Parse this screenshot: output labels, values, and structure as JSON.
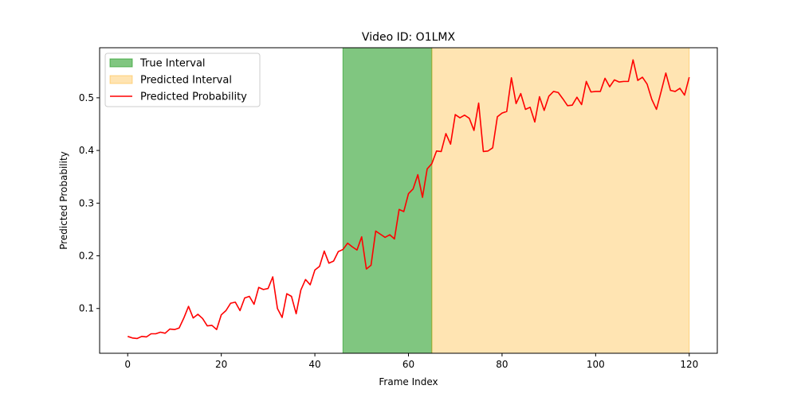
{
  "chart_data": {
    "type": "line",
    "title": "Video ID: O1LMX",
    "xlabel": "Frame Index",
    "ylabel": "Predicted Probability",
    "xlim": [
      -6,
      126
    ],
    "ylim": [
      0.015,
      0.595
    ],
    "x_ticks": [
      0,
      20,
      40,
      60,
      80,
      100,
      120
    ],
    "y_ticks": [
      0.1,
      0.2,
      0.3,
      0.4,
      0.5
    ],
    "grid": false,
    "legend_position": "top-left",
    "intervals": [
      {
        "name": "True Interval",
        "start": 46,
        "end": 65,
        "color": "#2ca02c",
        "opacity": 0.6
      },
      {
        "name": "Predicted Interval",
        "start": 65,
        "end": 120,
        "color": "#ffa500",
        "opacity": 0.3
      }
    ],
    "series": [
      {
        "name": "Predicted Probability",
        "color": "#ff0000",
        "x": [
          0,
          1,
          2,
          3,
          4,
          5,
          6,
          7,
          8,
          9,
          10,
          11,
          12,
          13,
          14,
          15,
          16,
          17,
          18,
          19,
          20,
          21,
          22,
          23,
          24,
          25,
          26,
          27,
          28,
          29,
          30,
          31,
          32,
          33,
          34,
          35,
          36,
          37,
          38,
          39,
          40,
          41,
          42,
          43,
          44,
          45,
          46,
          47,
          48,
          49,
          50,
          51,
          52,
          53,
          54,
          55,
          56,
          57,
          58,
          59,
          60,
          61,
          62,
          63,
          64,
          65,
          66,
          67,
          68,
          69,
          70,
          71,
          72,
          73,
          74,
          75,
          76,
          77,
          78,
          79,
          80,
          81,
          82,
          83,
          84,
          85,
          86,
          87,
          88,
          89,
          90,
          91,
          92,
          93,
          94,
          95,
          96,
          97,
          98,
          99,
          100,
          101,
          102,
          103,
          104,
          105,
          106,
          107,
          108,
          109,
          110,
          111,
          112,
          113,
          114,
          115,
          116,
          117,
          118,
          119,
          120
        ],
        "values": [
          0.047,
          0.044,
          0.043,
          0.047,
          0.046,
          0.052,
          0.052,
          0.055,
          0.053,
          0.061,
          0.06,
          0.063,
          0.082,
          0.104,
          0.082,
          0.089,
          0.081,
          0.067,
          0.068,
          0.06,
          0.088,
          0.096,
          0.11,
          0.112,
          0.096,
          0.12,
          0.123,
          0.108,
          0.14,
          0.136,
          0.138,
          0.16,
          0.1,
          0.083,
          0.128,
          0.123,
          0.09,
          0.135,
          0.155,
          0.145,
          0.173,
          0.18,
          0.209,
          0.186,
          0.19,
          0.208,
          0.212,
          0.224,
          0.217,
          0.211,
          0.236,
          0.175,
          0.182,
          0.247,
          0.241,
          0.235,
          0.24,
          0.232,
          0.288,
          0.284,
          0.318,
          0.327,
          0.354,
          0.311,
          0.365,
          0.375,
          0.399,
          0.398,
          0.432,
          0.412,
          0.468,
          0.462,
          0.467,
          0.461,
          0.438,
          0.49,
          0.398,
          0.399,
          0.405,
          0.464,
          0.471,
          0.474,
          0.538,
          0.489,
          0.508,
          0.478,
          0.482,
          0.454,
          0.502,
          0.476,
          0.503,
          0.512,
          0.51,
          0.498,
          0.485,
          0.486,
          0.501,
          0.487,
          0.531,
          0.511,
          0.512,
          0.512,
          0.537,
          0.521,
          0.534,
          0.53,
          0.531,
          0.531,
          0.572,
          0.533,
          0.539,
          0.526,
          0.497,
          0.478,
          0.512,
          0.547,
          0.514,
          0.512,
          0.518,
          0.505,
          0.539
        ]
      }
    ]
  }
}
